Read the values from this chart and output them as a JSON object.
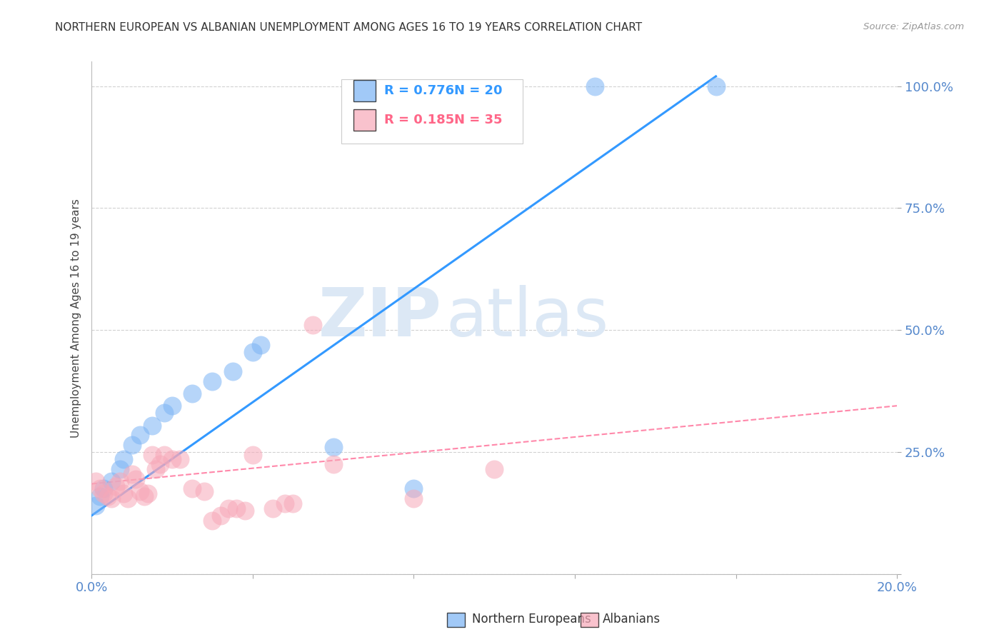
{
  "title": "NORTHERN EUROPEAN VS ALBANIAN UNEMPLOYMENT AMONG AGES 16 TO 19 YEARS CORRELATION CHART",
  "source": "Source: ZipAtlas.com",
  "ylabel": "Unemployment Among Ages 16 to 19 years",
  "xlim": [
    0.0,
    0.2
  ],
  "ylim": [
    0.0,
    1.05
  ],
  "x_ticks": [
    0.0,
    0.04,
    0.08,
    0.12,
    0.16,
    0.2
  ],
  "y_ticks": [
    0.0,
    0.25,
    0.5,
    0.75,
    1.0
  ],
  "blue_color": "#7ab3f5",
  "pink_color": "#f7a8b8",
  "blue_line_color": "#3399ff",
  "pink_line_color": "#ff88aa",
  "legend_r_blue": "R = 0.776",
  "legend_n_blue": "N = 20",
  "legend_r_pink": "R = 0.185",
  "legend_n_pink": "N = 35",
  "watermark_zip": "ZIP",
  "watermark_atlas": "atlas",
  "ne_x": [
    0.001,
    0.002,
    0.003,
    0.005,
    0.007,
    0.008,
    0.01,
    0.012,
    0.015,
    0.018,
    0.02,
    0.025,
    0.03,
    0.035,
    0.04,
    0.042,
    0.06,
    0.08,
    0.125,
    0.155
  ],
  "ne_y": [
    0.14,
    0.16,
    0.175,
    0.19,
    0.215,
    0.235,
    0.265,
    0.285,
    0.305,
    0.33,
    0.345,
    0.37,
    0.395,
    0.415,
    0.455,
    0.47,
    0.26,
    0.175,
    1.0,
    1.0
  ],
  "al_x": [
    0.001,
    0.002,
    0.003,
    0.004,
    0.005,
    0.006,
    0.007,
    0.008,
    0.009,
    0.01,
    0.011,
    0.012,
    0.013,
    0.014,
    0.015,
    0.016,
    0.017,
    0.018,
    0.02,
    0.022,
    0.025,
    0.028,
    0.03,
    0.032,
    0.034,
    0.036,
    0.038,
    0.04,
    0.045,
    0.048,
    0.05,
    0.055,
    0.06,
    0.08,
    0.1
  ],
  "al_y": [
    0.19,
    0.175,
    0.165,
    0.16,
    0.155,
    0.18,
    0.19,
    0.165,
    0.155,
    0.205,
    0.195,
    0.17,
    0.16,
    0.165,
    0.245,
    0.215,
    0.225,
    0.245,
    0.235,
    0.235,
    0.175,
    0.17,
    0.11,
    0.12,
    0.135,
    0.135,
    0.13,
    0.245,
    0.135,
    0.145,
    0.145,
    0.51,
    0.225,
    0.155,
    0.215
  ],
  "blue_trend_x0": 0.0,
  "blue_trend_y0": 0.12,
  "blue_trend_x1": 0.155,
  "blue_trend_y1": 1.02,
  "pink_trend_x0": 0.0,
  "pink_trend_y0": 0.185,
  "pink_trend_x1": 0.2,
  "pink_trend_y1": 0.345
}
